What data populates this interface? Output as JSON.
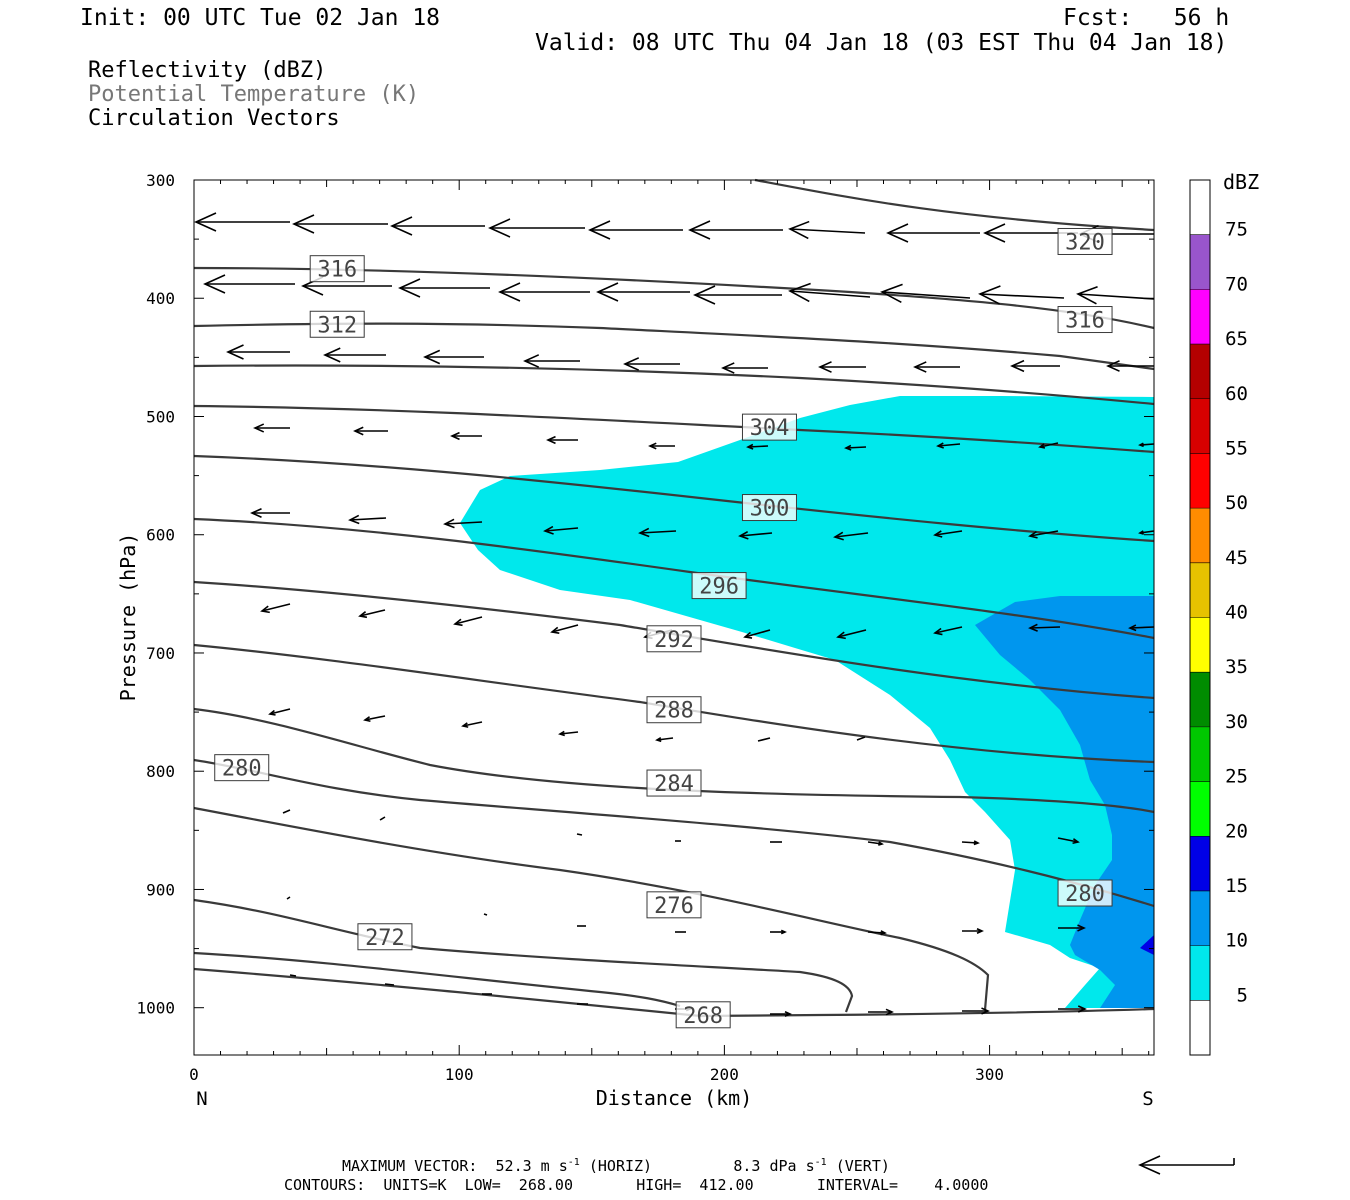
{
  "header": {
    "init": "Init: 00 UTC Tue 02 Jan 18",
    "fcst": "Fcst:   56 h",
    "valid": "Valid: 08 UTC Thu 04 Jan 18 (03 EST Thu 04 Jan 18)"
  },
  "legend_lines": {
    "reflectivity": "Reflectivity (dBZ)",
    "theta": "Potential Temperature (K)",
    "vectors": "Circulation Vectors"
  },
  "footer": {
    "max_vector_prefix": "MAXIMUM VECTOR:  52.3 m s",
    "max_vector_mid": " (HORIZ)         8.3 dPa s",
    "max_vector_suffix": " (VERT)",
    "superscript": "-1",
    "contours": "CONTOURS:  UNITS=K  LOW=  268.00       HIGH=  412.00       INTERVAL=    4.0000"
  },
  "colors": {
    "contour": "#3a3a3a",
    "dbz_5": "#00e8ec",
    "dbz_10": "#0096ee",
    "dbz_15": "#0000e6",
    "theta_label": "#777777"
  },
  "chart_data": {
    "type": "contour",
    "xlabel": "Distance (km)",
    "ylabel": "Pressure (hPa)",
    "x_end_labels": [
      "N",
      "S"
    ],
    "xlim": [
      0,
      362
    ],
    "ylim": [
      1040,
      300
    ],
    "xticks": [
      0,
      100,
      200,
      300
    ],
    "yticks": [
      300,
      400,
      500,
      600,
      700,
      800,
      900,
      1000
    ],
    "colorbar": {
      "title": "dBZ",
      "levels": [
        5,
        10,
        15,
        20,
        25,
        30,
        35,
        40,
        45,
        50,
        55,
        60,
        65,
        70,
        75
      ],
      "colors": [
        "#ffffff",
        "#00e8ec",
        "#0096ee",
        "#0000e6",
        "#00ff00",
        "#00c800",
        "#008c00",
        "#ffff00",
        "#e6c200",
        "#ff8c00",
        "#ff0000",
        "#d70000",
        "#b40000",
        "#ff00ff",
        "#9955cc",
        "#ffffff"
      ]
    },
    "contour_labels": [
      {
        "value": "320",
        "x": 336,
        "p": 352
      },
      {
        "value": "316",
        "x": 54,
        "p": 375
      },
      {
        "value": "316",
        "x": 336,
        "p": 418
      },
      {
        "value": "312",
        "x": 54,
        "p": 422
      },
      {
        "value": "304",
        "x": 217,
        "p": 509
      },
      {
        "value": "300",
        "x": 217,
        "p": 577
      },
      {
        "value": "296",
        "x": 198,
        "p": 643
      },
      {
        "value": "292",
        "x": 181,
        "p": 688
      },
      {
        "value": "288",
        "x": 181,
        "p": 748
      },
      {
        "value": "284",
        "x": 181,
        "p": 810
      },
      {
        "value": "280",
        "x": 18,
        "p": 797
      },
      {
        "value": "280",
        "x": 336,
        "p": 903
      },
      {
        "value": "276",
        "x": 181,
        "p": 913
      },
      {
        "value": "272",
        "x": 72,
        "p": 940
      },
      {
        "value": "268",
        "x": 192,
        "p": 1006
      }
    ]
  }
}
